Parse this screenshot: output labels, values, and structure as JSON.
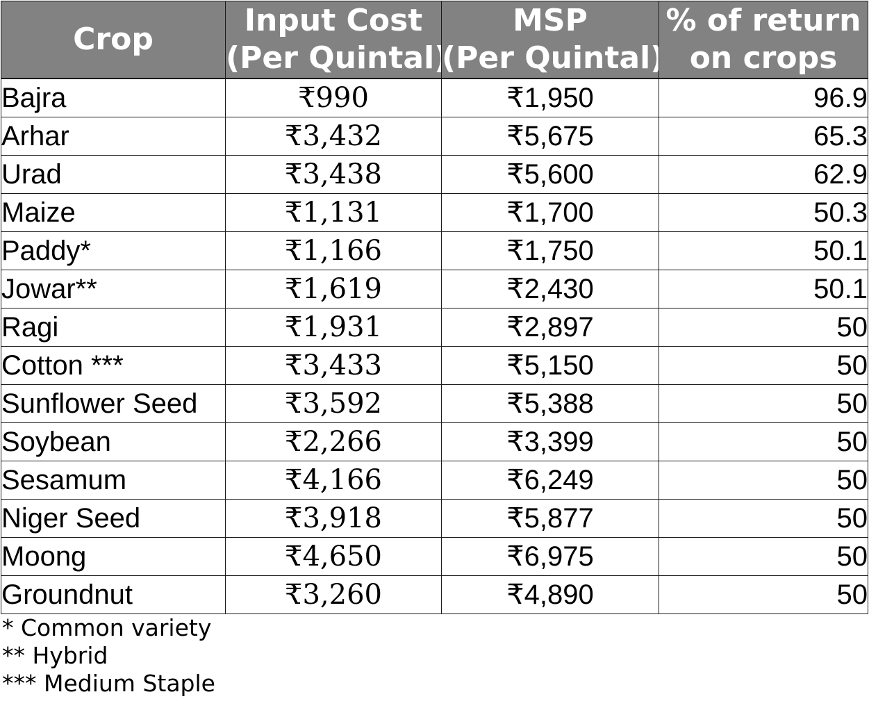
{
  "chart_data": {
    "type": "table",
    "columns": [
      [
        "Crop"
      ],
      [
        "Input Cost",
        "(Per Quintal)"
      ],
      [
        "MSP",
        "(Per Quintal)"
      ],
      [
        "% of return",
        "on crops"
      ]
    ],
    "rows": [
      [
        "Bajra",
        "₹990",
        "₹1,950",
        "96.9"
      ],
      [
        "Arhar",
        "₹3,432",
        "₹5,675",
        "65.3"
      ],
      [
        "Urad",
        "₹3,438",
        "₹5,600",
        "62.9"
      ],
      [
        "Maize",
        "₹1,131",
        "₹1,700",
        "50.3"
      ],
      [
        "Paddy*",
        "₹1,166",
        "₹1,750",
        "50.1"
      ],
      [
        "Jowar**",
        "₹1,619",
        "₹2,430",
        "50.1"
      ],
      [
        "Ragi",
        "₹1,931",
        "₹2,897",
        "50"
      ],
      [
        "Cotton ***",
        "₹3,433",
        "₹5,150",
        "50"
      ],
      [
        "Sunflower Seed",
        "₹3,592",
        "₹5,388",
        "50"
      ],
      [
        "Soybean",
        "₹2,266",
        "₹3,399",
        "50"
      ],
      [
        "Sesamum",
        "₹4,166",
        "₹6,249",
        "50"
      ],
      [
        "Niger Seed",
        "₹3,918",
        "₹5,877",
        "50"
      ],
      [
        "Moong",
        "₹4,650",
        "₹6,975",
        "50"
      ],
      [
        "Groundnut",
        "₹3,260",
        "₹4,890",
        "50"
      ]
    ],
    "footnotes": [
      "* Common variety",
      "** Hybrid",
      "*** Medium Staple"
    ],
    "header_color": "#828282"
  }
}
